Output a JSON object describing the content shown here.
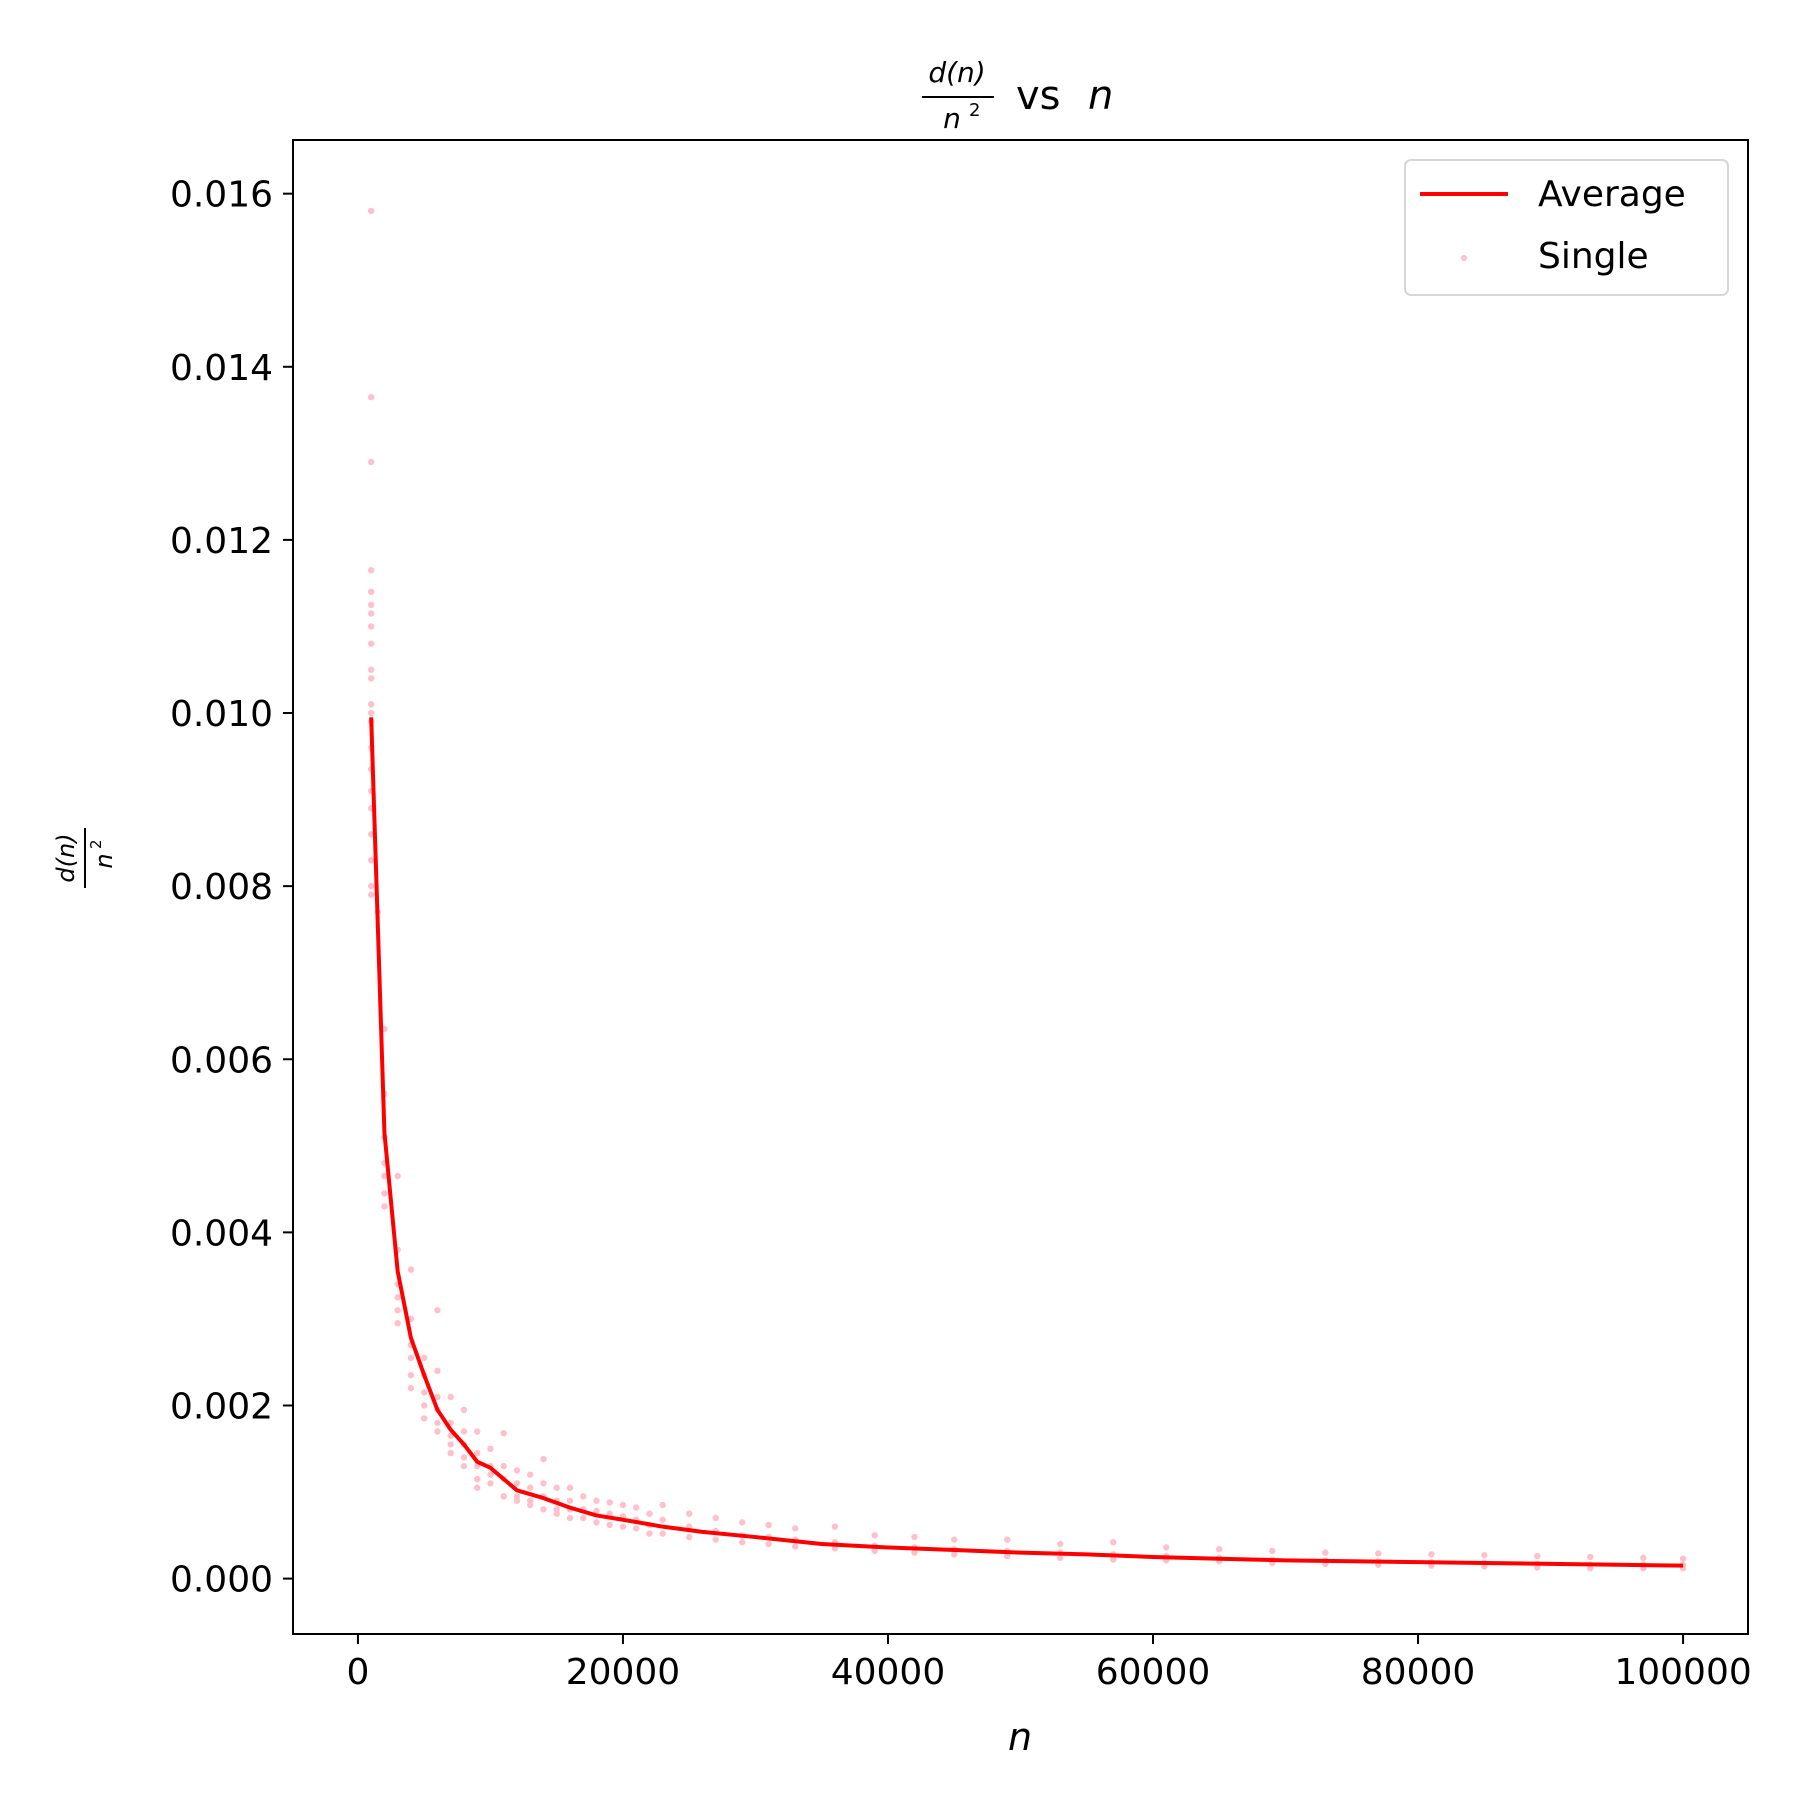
{
  "chart_data": {
    "type": "scatter",
    "title": {
      "frac_num": "d(n)",
      "frac_den": "n",
      "frac_den_exp": "2",
      "suffix_text": "vs",
      "suffix_var": "n"
    },
    "xlabel": "n",
    "ylabel": {
      "frac_num": "d(n)",
      "frac_den": "n",
      "frac_den_exp": "2"
    },
    "xlim": [
      -4900,
      104900
    ],
    "ylim": [
      -0.00064,
      0.01662
    ],
    "xticks": [
      0,
      20000,
      40000,
      60000,
      80000,
      100000
    ],
    "xtick_labels": [
      "0",
      "20000",
      "40000",
      "60000",
      "80000",
      "100000"
    ],
    "yticks": [
      0.0,
      0.002,
      0.004,
      0.006,
      0.008,
      0.01,
      0.012,
      0.014,
      0.016
    ],
    "ytick_labels": [
      "0.000",
      "0.002",
      "0.004",
      "0.006",
      "0.008",
      "0.010",
      "0.012",
      "0.014",
      "0.016"
    ],
    "grid": false,
    "legend_position": "top-right",
    "legend": [
      {
        "label": "Average",
        "kind": "line",
        "color": "#ff0000"
      },
      {
        "label": "Single",
        "kind": "scatter",
        "color": "#ffc0cb"
      }
    ],
    "series": [
      {
        "name": "Average",
        "kind": "line",
        "color": "#ff0000",
        "x": [
          1000,
          2000,
          3000,
          4000,
          5000,
          6000,
          7000,
          8000,
          9000,
          10000,
          12000,
          14000,
          16000,
          18000,
          20000,
          23000,
          26000,
          30000,
          35000,
          40000,
          45000,
          50000,
          55000,
          60000,
          65000,
          70000,
          75000,
          80000,
          85000,
          90000,
          95000,
          100000
        ],
        "y": [
          0.00995,
          0.00515,
          0.00355,
          0.00278,
          0.00235,
          0.00195,
          0.00172,
          0.00155,
          0.00135,
          0.00128,
          0.00102,
          0.00093,
          0.00082,
          0.00073,
          0.00068,
          0.0006,
          0.00054,
          0.00048,
          0.0004,
          0.00036,
          0.00033,
          0.0003,
          0.00028,
          0.00025,
          0.00023,
          0.00021,
          0.0002,
          0.00019,
          0.00018,
          0.00017,
          0.00016,
          0.00015
        ]
      },
      {
        "name": "Single",
        "kind": "scatter",
        "color": "#ffc0cb",
        "points": [
          [
            1000,
            0.0158
          ],
          [
            1000,
            0.01365
          ],
          [
            1000,
            0.0129
          ],
          [
            1000,
            0.01165
          ],
          [
            1000,
            0.0114
          ],
          [
            1000,
            0.01125
          ],
          [
            1000,
            0.01115
          ],
          [
            1000,
            0.011
          ],
          [
            1000,
            0.0108
          ],
          [
            1000,
            0.0105
          ],
          [
            1000,
            0.0104
          ],
          [
            1000,
            0.0101
          ],
          [
            1000,
            0.01
          ],
          [
            1000,
            0.0099
          ],
          [
            1000,
            0.0096
          ],
          [
            1000,
            0.00935
          ],
          [
            1000,
            0.0091
          ],
          [
            1000,
            0.0089
          ],
          [
            1000,
            0.0086
          ],
          [
            1000,
            0.0083
          ],
          [
            1000,
            0.008
          ],
          [
            1000,
            0.0079
          ],
          [
            1500,
            0.0077
          ],
          [
            2000,
            0.00635
          ],
          [
            2000,
            0.0056
          ],
          [
            2000,
            0.0051
          ],
          [
            2000,
            0.0048
          ],
          [
            2000,
            0.00465
          ],
          [
            2000,
            0.00445
          ],
          [
            2000,
            0.0043
          ],
          [
            3000,
            0.00465
          ],
          [
            3000,
            0.0038
          ],
          [
            3000,
            0.0034
          ],
          [
            3000,
            0.00325
          ],
          [
            3000,
            0.0031
          ],
          [
            3000,
            0.00295
          ],
          [
            4000,
            0.00357
          ],
          [
            4000,
            0.003
          ],
          [
            4000,
            0.0027
          ],
          [
            4000,
            0.00255
          ],
          [
            4000,
            0.00235
          ],
          [
            4000,
            0.0022
          ],
          [
            5000,
            0.00255
          ],
          [
            5000,
            0.00235
          ],
          [
            5000,
            0.00215
          ],
          [
            5000,
            0.002
          ],
          [
            5000,
            0.00185
          ],
          [
            6000,
            0.0031
          ],
          [
            6000,
            0.0024
          ],
          [
            6000,
            0.0021
          ],
          [
            6000,
            0.00195
          ],
          [
            6000,
            0.0018
          ],
          [
            6000,
            0.0017
          ],
          [
            7000,
            0.0021
          ],
          [
            7000,
            0.0018
          ],
          [
            7000,
            0.00165
          ],
          [
            7000,
            0.00155
          ],
          [
            7000,
            0.00145
          ],
          [
            8000,
            0.00195
          ],
          [
            8000,
            0.0017
          ],
          [
            8000,
            0.00155
          ],
          [
            8000,
            0.0014
          ],
          [
            8000,
            0.0013
          ],
          [
            9000,
            0.0017
          ],
          [
            9000,
            0.00145
          ],
          [
            9000,
            0.0013
          ],
          [
            9000,
            0.00115
          ],
          [
            9000,
            0.00105
          ],
          [
            10000,
            0.0015
          ],
          [
            10000,
            0.0013
          ],
          [
            10000,
            0.0012
          ],
          [
            10000,
            0.0011
          ],
          [
            11000,
            0.00168
          ],
          [
            11000,
            0.0013
          ],
          [
            11000,
            0.00115
          ],
          [
            11000,
            0.00095
          ],
          [
            12000,
            0.00125
          ],
          [
            12000,
            0.0011
          ],
          [
            12000,
            0.00095
          ],
          [
            12000,
            0.0009
          ],
          [
            13000,
            0.0012
          ],
          [
            13000,
            0.00105
          ],
          [
            13000,
            0.0009
          ],
          [
            13000,
            0.00085
          ],
          [
            14000,
            0.00138
          ],
          [
            14000,
            0.0011
          ],
          [
            14000,
            0.00095
          ],
          [
            14000,
            0.0008
          ],
          [
            15000,
            0.00105
          ],
          [
            15000,
            0.0009
          ],
          [
            15000,
            0.0008
          ],
          [
            15000,
            0.00075
          ],
          [
            16000,
            0.00105
          ],
          [
            16000,
            0.0009
          ],
          [
            16000,
            0.0008
          ],
          [
            16000,
            0.0007
          ],
          [
            17000,
            0.00095
          ],
          [
            17000,
            0.0008
          ],
          [
            17000,
            0.0007
          ],
          [
            18000,
            0.0009
          ],
          [
            18000,
            0.00078
          ],
          [
            18000,
            0.00065
          ],
          [
            19000,
            0.00088
          ],
          [
            19000,
            0.00075
          ],
          [
            19000,
            0.00062
          ],
          [
            20000,
            0.00085
          ],
          [
            20000,
            0.00072
          ],
          [
            20000,
            0.0006
          ],
          [
            21000,
            0.00082
          ],
          [
            21000,
            0.00068
          ],
          [
            21000,
            0.00058
          ],
          [
            22000,
            0.00075
          ],
          [
            22000,
            0.00062
          ],
          [
            22000,
            0.00052
          ],
          [
            23000,
            0.00085
          ],
          [
            23000,
            0.00068
          ],
          [
            23000,
            0.00052
          ],
          [
            25000,
            0.00075
          ],
          [
            25000,
            0.0006
          ],
          [
            25000,
            0.00048
          ],
          [
            27000,
            0.0007
          ],
          [
            27000,
            0.00055
          ],
          [
            27000,
            0.00045
          ],
          [
            29000,
            0.00065
          ],
          [
            29000,
            0.0005
          ],
          [
            29000,
            0.00042
          ],
          [
            31000,
            0.00062
          ],
          [
            31000,
            0.00048
          ],
          [
            31000,
            0.0004
          ],
          [
            33000,
            0.00058
          ],
          [
            33000,
            0.00045
          ],
          [
            33000,
            0.00037
          ],
          [
            36000,
            0.0006
          ],
          [
            36000,
            0.00042
          ],
          [
            36000,
            0.00035
          ],
          [
            39000,
            0.0005
          ],
          [
            39000,
            0.00038
          ],
          [
            39000,
            0.00032
          ],
          [
            42000,
            0.00048
          ],
          [
            42000,
            0.00036
          ],
          [
            42000,
            0.0003
          ],
          [
            45000,
            0.00045
          ],
          [
            45000,
            0.00034
          ],
          [
            45000,
            0.00028
          ],
          [
            49000,
            0.00045
          ],
          [
            49000,
            0.00032
          ],
          [
            49000,
            0.00026
          ],
          [
            53000,
            0.0004
          ],
          [
            53000,
            0.0003
          ],
          [
            53000,
            0.00024
          ],
          [
            57000,
            0.00042
          ],
          [
            57000,
            0.00028
          ],
          [
            57000,
            0.00022
          ],
          [
            61000,
            0.00036
          ],
          [
            61000,
            0.00026
          ],
          [
            61000,
            0.00021
          ],
          [
            65000,
            0.00034
          ],
          [
            65000,
            0.00024
          ],
          [
            65000,
            0.0002
          ],
          [
            69000,
            0.00032
          ],
          [
            69000,
            0.00022
          ],
          [
            69000,
            0.00018
          ],
          [
            73000,
            0.0003
          ],
          [
            73000,
            0.00021
          ],
          [
            73000,
            0.00017
          ],
          [
            77000,
            0.00029
          ],
          [
            77000,
            0.0002
          ],
          [
            77000,
            0.00016
          ],
          [
            81000,
            0.00028
          ],
          [
            81000,
            0.00019
          ],
          [
            81000,
            0.00015
          ],
          [
            85000,
            0.00027
          ],
          [
            85000,
            0.00018
          ],
          [
            85000,
            0.00014
          ],
          [
            89000,
            0.00026
          ],
          [
            89000,
            0.00017
          ],
          [
            89000,
            0.00013
          ],
          [
            93000,
            0.00025
          ],
          [
            93000,
            0.00016
          ],
          [
            93000,
            0.00012
          ],
          [
            97000,
            0.00024
          ],
          [
            97000,
            0.00016
          ],
          [
            97000,
            0.00012
          ],
          [
            100000,
            0.00023
          ],
          [
            100000,
            0.00016
          ],
          [
            100000,
            0.00012
          ]
        ]
      }
    ]
  }
}
